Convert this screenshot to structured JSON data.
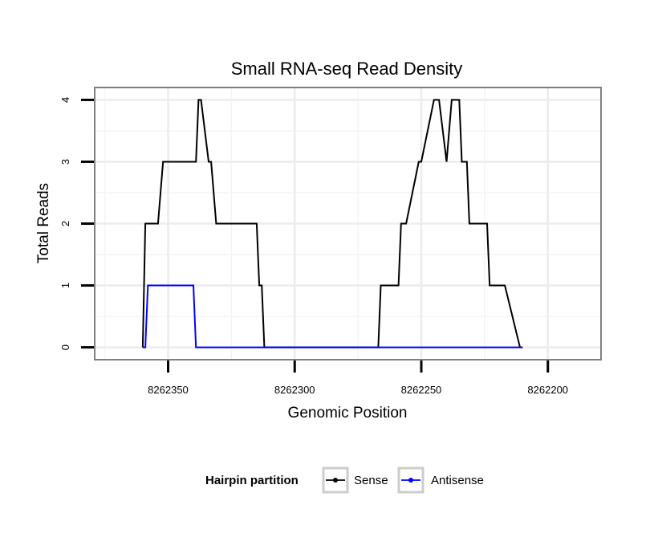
{
  "chart_data": {
    "type": "line",
    "title": "Small RNA-seq Read Density",
    "xlabel": "Genomic Position",
    "ylabel": "Total Reads",
    "x_reversed": true,
    "xlim": [
      8262379,
      8262179
    ],
    "ylim": [
      -0.2,
      4.2
    ],
    "x_ticks": [
      8262350,
      8262300,
      8262250,
      8262200
    ],
    "x_tick_labels": [
      "8262350",
      "8262300",
      "8262250",
      "8262200"
    ],
    "y_ticks": [
      0,
      1,
      2,
      3,
      4
    ],
    "y_tick_labels": [
      "0",
      "1",
      "2",
      "3",
      "4"
    ],
    "grid": true,
    "legend": {
      "title": "Hairpin partition",
      "position": "bottom"
    },
    "series": [
      {
        "name": "Sense",
        "color": "#000000",
        "x": [
          8262360,
          8262359,
          8262358,
          8262354,
          8262352,
          8262347,
          8262339,
          8262338,
          8262337,
          8262334,
          8262333,
          8262331,
          8262324,
          8262315,
          8262314,
          8262313,
          8262312,
          8262267,
          8262266,
          8262259,
          8262258,
          8262256,
          8262251,
          8262250,
          8262245,
          8262243,
          8262240,
          8262238,
          8262235,
          8262234,
          8262232,
          8262231,
          8262224,
          8262223,
          8262217,
          8262211,
          8262210
        ],
        "y": [
          0,
          2,
          2,
          2,
          3,
          3,
          3,
          4,
          4,
          3,
          3,
          2,
          2,
          2,
          1,
          1,
          0,
          0,
          1,
          1,
          2,
          2,
          3,
          3,
          4,
          4,
          3,
          4,
          4,
          3,
          3,
          2,
          2,
          1,
          1,
          0,
          0
        ]
      },
      {
        "name": "Antisense",
        "color": "#0000ff",
        "x": [
          8262360,
          8262359,
          8262358,
          8262340,
          8262339,
          8262210
        ],
        "y": [
          0,
          0,
          1,
          1,
          0,
          0
        ]
      }
    ]
  }
}
